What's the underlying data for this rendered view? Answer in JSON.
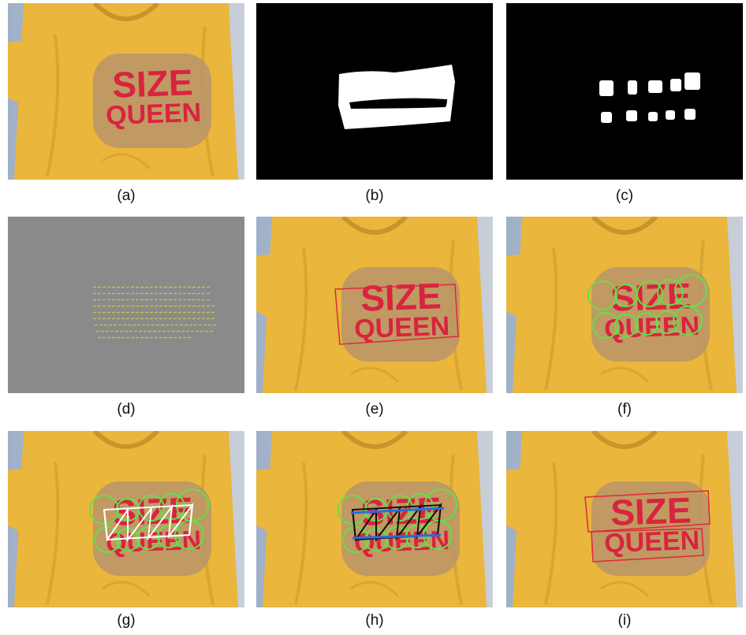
{
  "shirt_text": {
    "line1": "SIZE",
    "line2": "QUEEN"
  },
  "colors": {
    "shirt": "#eab63c",
    "shirt_shadow": "#c9952a",
    "patch": "#b8946a",
    "print_red": "#d8243f",
    "background_left": "#9fb0c8",
    "detect_box": "#e0283a",
    "circle": "#63e04a",
    "mesh_white": "#ffffff",
    "mesh_black": "#111111",
    "line_blue": "#2a6cdb",
    "mask_bg": "#000000",
    "mask_fg": "#ffffff",
    "flow_bg": "#8a8a8a",
    "flow_fg": "#d8d046"
  },
  "panels": [
    {
      "id": "a",
      "caption": "(a)"
    },
    {
      "id": "b",
      "caption": "(b)"
    },
    {
      "id": "c",
      "caption": "(c)"
    },
    {
      "id": "d",
      "caption": "(d)"
    },
    {
      "id": "e",
      "caption": "(e)"
    },
    {
      "id": "f",
      "caption": "(f)"
    },
    {
      "id": "g",
      "caption": "(g)"
    },
    {
      "id": "h",
      "caption": "(h)"
    },
    {
      "id": "i",
      "caption": "(i)"
    }
  ]
}
